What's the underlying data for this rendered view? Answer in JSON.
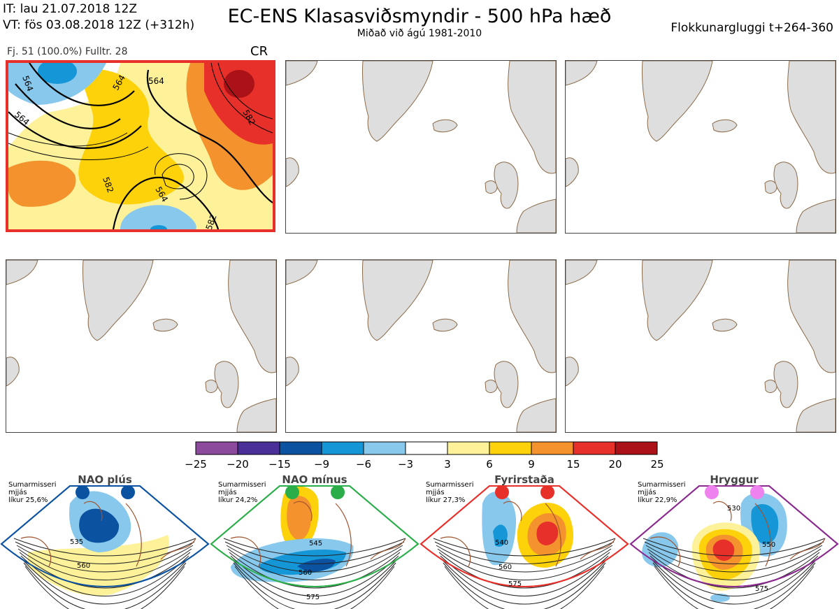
{
  "header": {
    "it_line": "IT: lau 21.07.2018 12Z",
    "vt_line": "VT: fös 03.08.2018 12Z  (+312h)",
    "title": "EC-ENS Klasasviðsmyndir - 500 hPa hæð",
    "subtitle": "Miðað við ágú 1981-2010",
    "window": "Flokkunargluggi t+264-360"
  },
  "selected_panel": {
    "info": "Fj. 51 (100.0%)   Fulltr. 28",
    "regime_code": "CR",
    "contour_labels": [
      "564",
      "564",
      "582",
      "564",
      "582",
      "582",
      "564",
      "564"
    ]
  },
  "colorbar": {
    "ticks": [
      "−25",
      "−20",
      "−15",
      "−9",
      "−6",
      "−3",
      "3",
      "6",
      "9",
      "15",
      "20",
      "25"
    ],
    "colors": [
      "#8b4a9c",
      "#4b2f98",
      "#0b52a1",
      "#1596d6",
      "#87c8ec",
      "#ffffff",
      "#fdf29a",
      "#fdd20b",
      "#f4922e",
      "#e8302a",
      "#ab1218"
    ]
  },
  "regimes": [
    {
      "name": "NAO plús",
      "season": "Sumarmisseri",
      "note": "mjjás",
      "likelihood": "líkur 25,6%",
      "color": "#0b52a1",
      "labels": [
        "535",
        "560"
      ]
    },
    {
      "name": "NAO mínus",
      "season": "Sumarmisseri",
      "note": "mjjás",
      "likelihood": "líkur 24,2%",
      "color": "#2bae4a",
      "labels": [
        "545",
        "560",
        "575"
      ]
    },
    {
      "name": "Fyrirstaða",
      "season": "Sumarmisseri",
      "note": "mjjás",
      "likelihood": "líkur 27,3%",
      "color": "#e8302a",
      "labels": [
        "540",
        "560",
        "575"
      ]
    },
    {
      "name": "Hryggur",
      "season": "Sumarmisseri",
      "note": "mjjás",
      "likelihood": "líkur 22,9%",
      "color": "#8a2a8f",
      "dot_color": "#ee82ee",
      "labels": [
        "530",
        "550",
        "575"
      ]
    }
  ]
}
